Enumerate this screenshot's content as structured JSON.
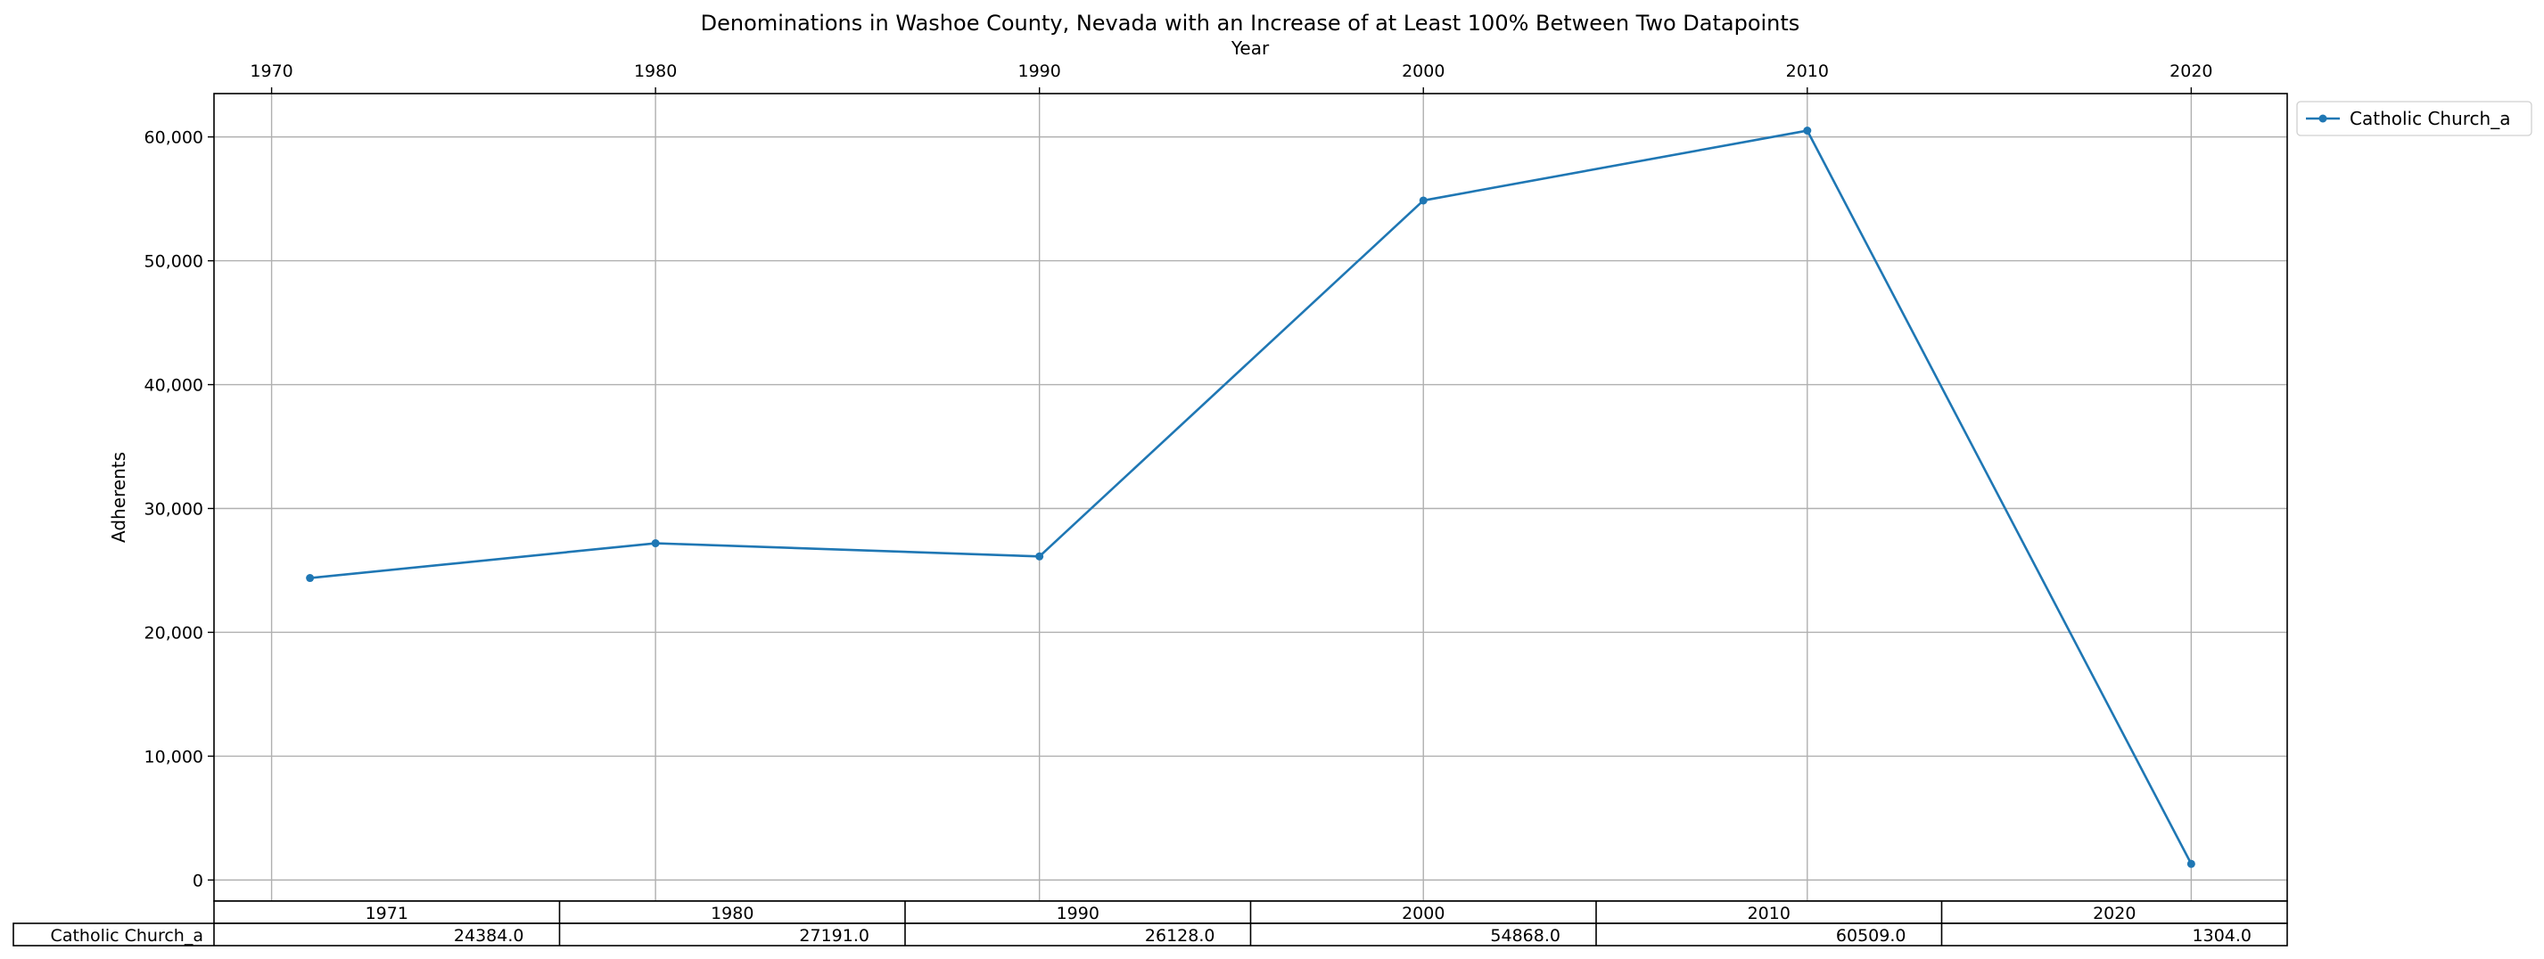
{
  "chart_data": {
    "type": "line",
    "title": "Denominations in Washoe County, Nevada with an Increase of at Least 100% Between Two Datapoints",
    "xlabel": "Year",
    "ylabel": "Adherents",
    "x_ticks": [
      "1970",
      "1980",
      "1990",
      "2000",
      "2010",
      "2020"
    ],
    "y_ticks": [
      "0",
      "10,000",
      "20,000",
      "30,000",
      "40,000",
      "50,000",
      "60,000"
    ],
    "xlim": [
      1968.5,
      2022.5
    ],
    "ylim": [
      -1700,
      63500
    ],
    "grid": true,
    "legend_position": "outside-top-right",
    "x": [
      1971,
      1980,
      1990,
      2000,
      2010,
      2020
    ],
    "series": [
      {
        "name": "Catholic Church_a",
        "color": "#1f77b4",
        "values": [
          24384.0,
          27191.0,
          26128.0,
          54868.0,
          60509.0,
          1304.0
        ]
      }
    ],
    "table": {
      "columns": [
        "1971",
        "1980",
        "1990",
        "2000",
        "2010",
        "2020"
      ],
      "row_label": "Catholic Church_a",
      "cells": [
        "24384.0",
        "27191.0",
        "26128.0",
        "54868.0",
        "60509.0",
        "1304.0"
      ]
    }
  }
}
